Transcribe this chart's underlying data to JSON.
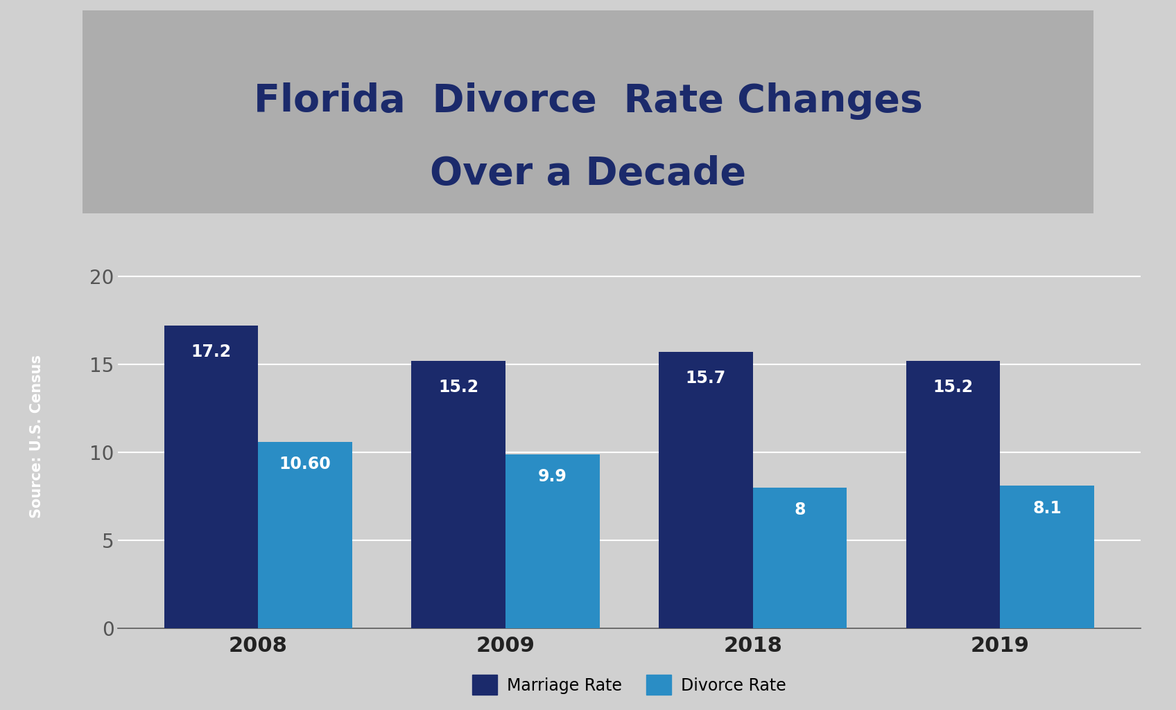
{
  "categories": [
    "2008",
    "2009",
    "2018",
    "2019"
  ],
  "marriage_rates": [
    17.2,
    15.2,
    15.7,
    15.2
  ],
  "divorce_rates": [
    10.6,
    9.9,
    8.0,
    8.1
  ],
  "marriage_labels": [
    "17.2",
    "15.2",
    "15.7",
    "15.2"
  ],
  "divorce_labels": [
    "10.60",
    "9.9",
    "8",
    "8.1"
  ],
  "marriage_color": "#1B2A6B",
  "divorce_color": "#2A8DC5",
  "background_color": "#D0D0D0",
  "title_box_color": "#ADADAD",
  "title_color": "#1B2A6B",
  "ylabel_text": "Source: U.S. Census",
  "ylabel_box_color": "#1B2A6B",
  "ylabel_text_color": "#FFFFFF",
  "ylim": [
    0,
    22
  ],
  "yticks": [
    0,
    5,
    10,
    15,
    20
  ],
  "legend_marriage": "Marriage Rate",
  "legend_divorce": "Divorce Rate",
  "bar_width": 0.38,
  "label_fontsize": 17,
  "tick_fontsize": 20,
  "legend_fontsize": 17,
  "title_fontsize": 40
}
